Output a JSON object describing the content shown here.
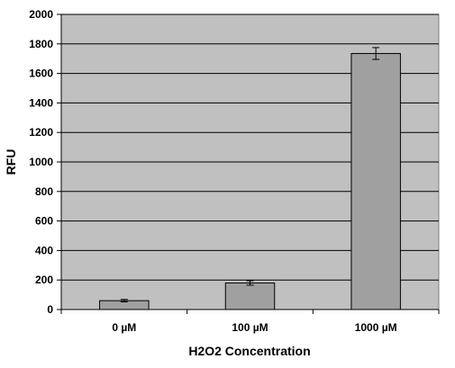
{
  "chart_data": {
    "type": "bar",
    "title": "",
    "xlabel": "H2O2  Concentration",
    "ylabel": "RFU",
    "categories": [
      "0 µM",
      "100 µM",
      "1000 µM"
    ],
    "values": [
      60,
      180,
      1735
    ],
    "errors": [
      8,
      15,
      40
    ],
    "ylim": [
      0,
      2000
    ],
    "yticks": [
      0,
      200,
      400,
      600,
      800,
      1000,
      1200,
      1400,
      1600,
      1800,
      2000
    ],
    "grid": true,
    "legend": "none",
    "colors": {
      "plot_background": "#c0c0c0",
      "bar_fill": "#a0a0a0",
      "bar_stroke": "#000000",
      "gridline": "#000000"
    }
  }
}
